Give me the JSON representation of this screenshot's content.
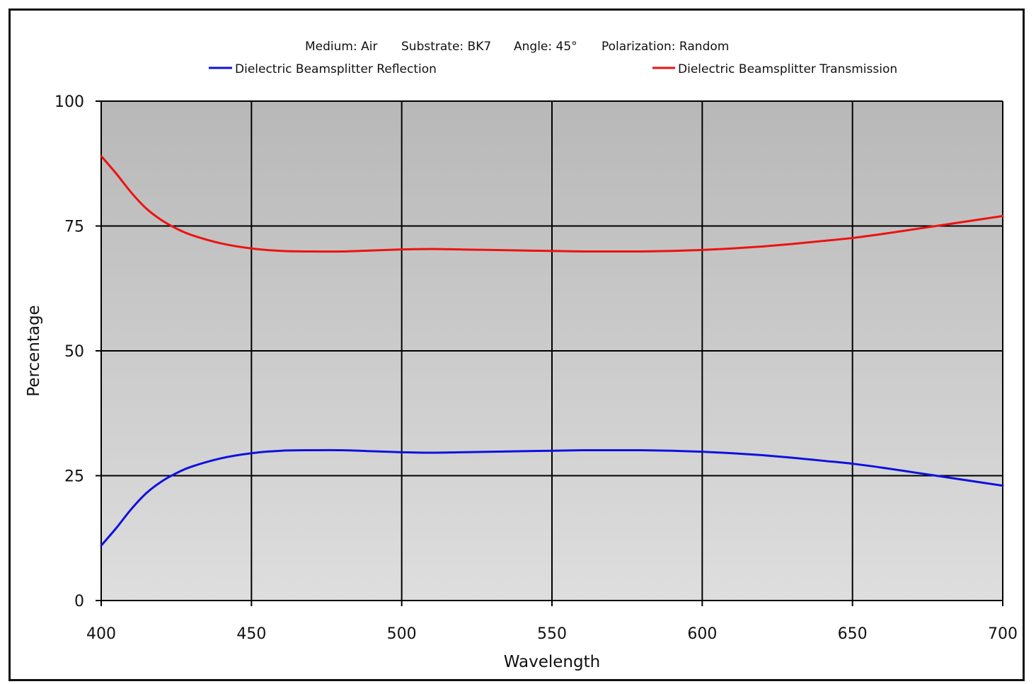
{
  "chart_data": {
    "type": "line",
    "subtitle_items": [
      "Medium: Air",
      "Substrate: BK7",
      "Angle: 45°",
      "Polarization: Random"
    ],
    "xlabel": "Wavelength",
    "ylabel": "Percentage",
    "xlim": [
      400,
      700
    ],
    "ylim": [
      0,
      100
    ],
    "x_ticks": [
      "400",
      "450",
      "500",
      "550",
      "600",
      "650",
      "700"
    ],
    "y_ticks": [
      "0",
      "25",
      "50",
      "75",
      "100"
    ],
    "grid": true,
    "legend_position": "top",
    "colors": {
      "reflection": "#1010e0",
      "transmission": "#ee1111",
      "grid": "#000000",
      "plot_top": "#b8b8b8",
      "plot_bottom": "#dedede"
    },
    "x": [
      400,
      405,
      410,
      415,
      420,
      425,
      430,
      440,
      450,
      460,
      470,
      480,
      490,
      500,
      510,
      520,
      530,
      540,
      550,
      560,
      570,
      580,
      590,
      600,
      610,
      620,
      630,
      640,
      650,
      660,
      670,
      680,
      690,
      700
    ],
    "series": [
      {
        "name": "Dielectric Beamsplitter Reflection",
        "values": [
          11,
          14.5,
          18.3,
          21.5,
          23.8,
          25.5,
          26.8,
          28.5,
          29.5,
          30,
          30.1,
          30.1,
          29.9,
          29.7,
          29.6,
          29.7,
          29.8,
          29.9,
          30,
          30.1,
          30.1,
          30.1,
          30,
          29.8,
          29.5,
          29.1,
          28.6,
          28,
          27.4,
          26.6,
          25.7,
          24.8,
          23.9,
          23
        ]
      },
      {
        "name": "Dielectric Beamsplitter Transmission",
        "values": [
          89,
          85.5,
          81.7,
          78.5,
          76.2,
          74.5,
          73.2,
          71.5,
          70.5,
          70,
          69.9,
          69.9,
          70.1,
          70.3,
          70.4,
          70.3,
          70.2,
          70.1,
          70,
          69.9,
          69.9,
          69.9,
          70,
          70.2,
          70.5,
          70.9,
          71.4,
          72,
          72.6,
          73.4,
          74.3,
          75.2,
          76.1,
          77
        ]
      }
    ]
  }
}
